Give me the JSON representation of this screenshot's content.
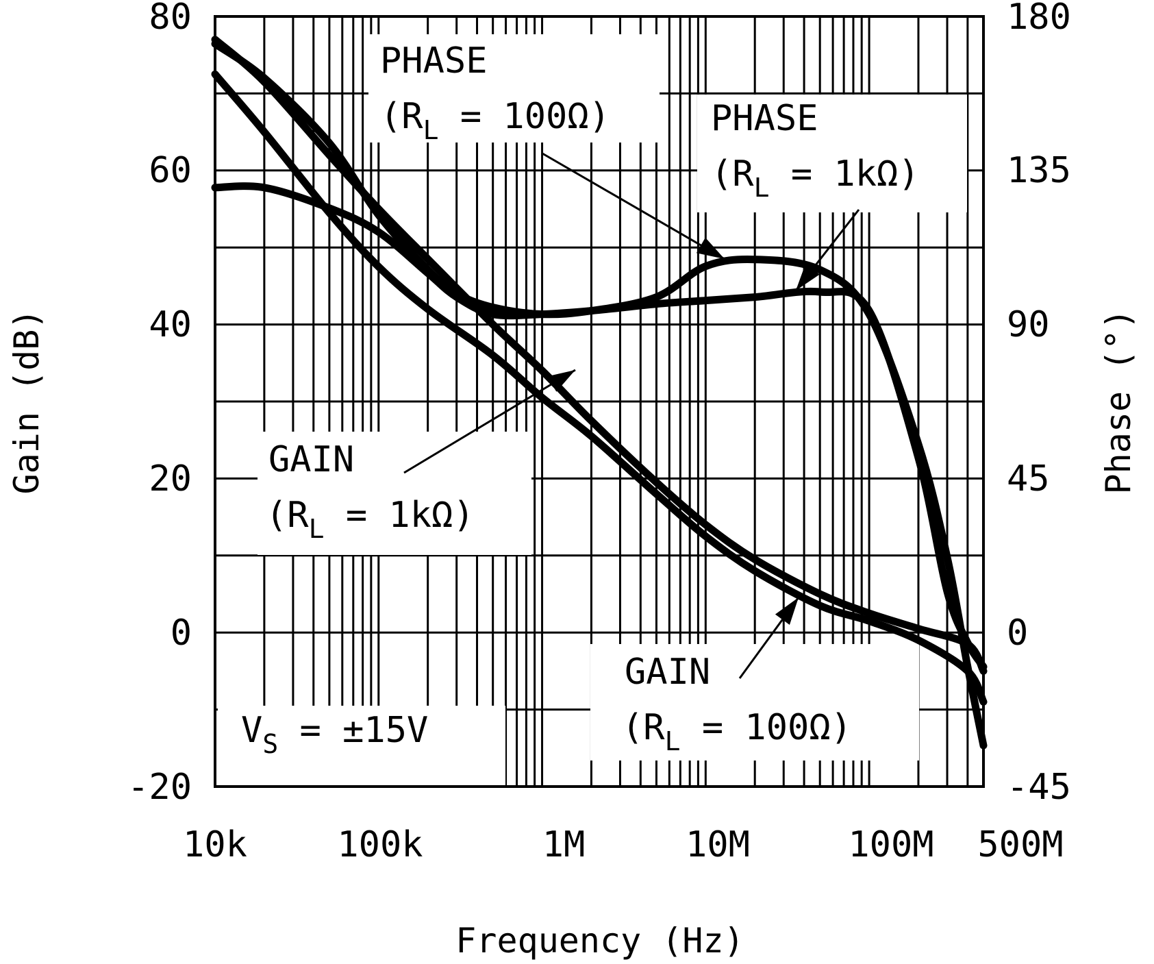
{
  "chart_data": {
    "type": "line",
    "xscale": "log",
    "xlim": [
      10000,
      500000000
    ],
    "xlabel": "Frequency (Hz)",
    "xticks": [
      {
        "value": 10000,
        "label": "10k"
      },
      {
        "value": 100000,
        "label": "100k"
      },
      {
        "value": 1000000,
        "label": "1M"
      },
      {
        "value": 10000000,
        "label": "10M"
      },
      {
        "value": 100000000,
        "label": "100M"
      },
      {
        "value": 500000000,
        "label": "500M"
      }
    ],
    "ylabel_left": "Gain (dB)",
    "ylim_left": [
      -20,
      80
    ],
    "yticks_left": [
      "-20",
      "0",
      "20",
      "40",
      "60",
      "80"
    ],
    "ylabel_right": "Phase (°)",
    "ylim_right": [
      -45,
      180
    ],
    "yticks_right": [
      "-45",
      "0",
      "45",
      "90",
      "135",
      "180"
    ],
    "series": [
      {
        "name": "GAIN (R_L = 1kΩ)",
        "axis": "left",
        "x": [
          10000,
          20000,
          50000,
          100000,
          200000,
          500000,
          1000000,
          2000000,
          5000000,
          10000000,
          20000000,
          50000000,
          100000000,
          200000000,
          400000000,
          500000000
        ],
        "y": [
          77,
          71.5,
          62,
          55,
          48.5,
          40,
          34,
          27.5,
          19.5,
          14,
          9.5,
          5,
          2.5,
          0.5,
          -1.5,
          -5
        ]
      },
      {
        "name": "GAIN (R_L = 100Ω)",
        "axis": "left",
        "x": [
          10000,
          20000,
          50000,
          100000,
          200000,
          500000,
          1000000,
          2000000,
          5000000,
          10000000,
          20000000,
          50000000,
          100000000,
          200000000,
          400000000,
          500000000
        ],
        "y": [
          72.5,
          65,
          54.5,
          47.5,
          42,
          36,
          30.5,
          25.5,
          18,
          12.5,
          8,
          3.5,
          1.5,
          -1,
          -5,
          -9
        ]
      },
      {
        "name": "PHASE (R_L = 100Ω)",
        "axis": "right",
        "x": [
          10000,
          20000,
          50000,
          100000,
          200000,
          300000,
          500000,
          1000000,
          2000000,
          5000000,
          10000000,
          20000000,
          50000000,
          100000000,
          200000000,
          300000000,
          400000000,
          500000000
        ],
        "y": [
          172,
          162,
          143,
          122,
          106,
          99,
          95,
          93,
          94,
          98,
          107,
          109,
          106,
          93,
          55,
          22,
          -10,
          -33
        ]
      },
      {
        "name": "PHASE (R_L = 1kΩ)",
        "axis": "right",
        "x": [
          10000,
          20000,
          50000,
          100000,
          200000,
          300000,
          500000,
          1000000,
          2000000,
          5000000,
          10000000,
          20000000,
          50000000,
          100000000,
          200000000,
          300000000,
          400000000,
          500000000
        ],
        "y": [
          130,
          130,
          124,
          117,
          105,
          98,
          93,
          93,
          94,
          96,
          97,
          98,
          99.5,
          94,
          51,
          12,
          -3,
          -10
        ]
      }
    ],
    "annotations": [
      {
        "id": "phase100",
        "line1": "PHASE",
        "pre": "(R",
        "sub": "L",
        "post": " = 100Ω)",
        "target_series": "PHASE (R_L = 100Ω)"
      },
      {
        "id": "phase1k",
        "line1": "PHASE",
        "pre": "(R",
        "sub": "L",
        "post": " = 1kΩ)",
        "target_series": "PHASE (R_L = 1kΩ)"
      },
      {
        "id": "gain1k",
        "line1": "GAIN",
        "pre": "(R",
        "sub": "L",
        "post": " = 1kΩ)",
        "target_series": "GAIN (R_L = 1kΩ)"
      },
      {
        "id": "gain100",
        "line1": "GAIN",
        "pre": "(R",
        "sub": "L",
        "post": " = 100Ω)",
        "target_series": "GAIN (R_L = 100Ω)"
      }
    ],
    "condition": {
      "pre": "V",
      "sub": "S",
      "post": " = ±15V"
    },
    "grid": true,
    "legend": "none"
  }
}
